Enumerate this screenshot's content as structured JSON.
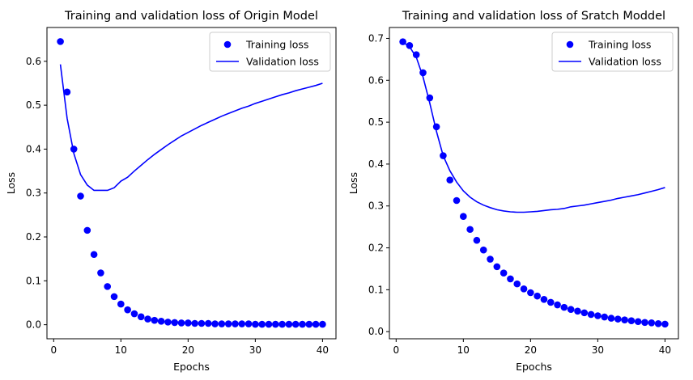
{
  "colors": {
    "series": "#0000ff",
    "axis": "#000000",
    "legend_border": "#cccccc"
  },
  "chart_data": [
    {
      "type": "line",
      "title": "Training and validation loss of Origin Model",
      "xlabel": "Epochs",
      "ylabel": "Loss",
      "xlim": [
        -1,
        42
      ],
      "ylim": [
        -0.032,
        0.677
      ],
      "xticks": [
        0,
        10,
        20,
        30,
        40
      ],
      "yticks": [
        0.0,
        0.1,
        0.2,
        0.3,
        0.4,
        0.5,
        0.6
      ],
      "ytick_labels": [
        "0.0",
        "0.1",
        "0.2",
        "0.3",
        "0.4",
        "0.5",
        "0.6"
      ],
      "grid": false,
      "legend_position": "top-right",
      "x": [
        1,
        2,
        3,
        4,
        5,
        6,
        7,
        8,
        9,
        10,
        11,
        12,
        13,
        14,
        15,
        16,
        17,
        18,
        19,
        20,
        21,
        22,
        23,
        24,
        25,
        26,
        27,
        28,
        29,
        30,
        31,
        32,
        33,
        34,
        35,
        36,
        37,
        38,
        39,
        40
      ],
      "series": [
        {
          "name": "Training loss",
          "style": "markers",
          "values": [
            0.645,
            0.53,
            0.4,
            0.293,
            0.215,
            0.16,
            0.118,
            0.087,
            0.064,
            0.047,
            0.034,
            0.025,
            0.018,
            0.013,
            0.01,
            0.008,
            0.006,
            0.005,
            0.004,
            0.004,
            0.003,
            0.003,
            0.003,
            0.002,
            0.002,
            0.002,
            0.002,
            0.002,
            0.002,
            0.001,
            0.001,
            0.001,
            0.001,
            0.001,
            0.001,
            0.001,
            0.001,
            0.001,
            0.001,
            0.001
          ]
        },
        {
          "name": "Validation loss",
          "style": "line",
          "values": [
            0.593,
            0.47,
            0.39,
            0.342,
            0.318,
            0.306,
            0.306,
            0.306,
            0.312,
            0.327,
            0.336,
            0.35,
            0.363,
            0.376,
            0.388,
            0.399,
            0.41,
            0.42,
            0.43,
            0.438,
            0.446,
            0.454,
            0.461,
            0.468,
            0.475,
            0.481,
            0.487,
            0.493,
            0.498,
            0.504,
            0.509,
            0.514,
            0.519,
            0.524,
            0.528,
            0.533,
            0.537,
            0.541,
            0.545,
            0.55
          ]
        }
      ]
    },
    {
      "type": "line",
      "title": "Training and validation loss of Sratch Moddel",
      "xlabel": "Epochs",
      "ylabel": "Loss",
      "xlim": [
        -1,
        42
      ],
      "ylim": [
        -0.017,
        0.726
      ],
      "xticks": [
        0,
        10,
        20,
        30,
        40
      ],
      "yticks": [
        0.0,
        0.1,
        0.2,
        0.3,
        0.4,
        0.5,
        0.6,
        0.7
      ],
      "ytick_labels": [
        "0.0",
        "0.1",
        "0.2",
        "0.3",
        "0.4",
        "0.5",
        "0.6",
        "0.7"
      ],
      "grid": false,
      "legend_position": "top-right",
      "x": [
        1,
        2,
        3,
        4,
        5,
        6,
        7,
        8,
        9,
        10,
        11,
        12,
        13,
        14,
        15,
        16,
        17,
        18,
        19,
        20,
        21,
        22,
        23,
        24,
        25,
        26,
        27,
        28,
        29,
        30,
        31,
        32,
        33,
        34,
        35,
        36,
        37,
        38,
        39,
        40
      ],
      "series": [
        {
          "name": "Training loss",
          "style": "markers",
          "values": [
            0.692,
            0.683,
            0.661,
            0.618,
            0.558,
            0.489,
            0.42,
            0.362,
            0.313,
            0.275,
            0.244,
            0.218,
            0.195,
            0.173,
            0.155,
            0.14,
            0.126,
            0.114,
            0.102,
            0.093,
            0.085,
            0.077,
            0.07,
            0.064,
            0.058,
            0.053,
            0.049,
            0.045,
            0.041,
            0.038,
            0.035,
            0.032,
            0.03,
            0.028,
            0.026,
            0.024,
            0.022,
            0.021,
            0.019,
            0.018
          ]
        },
        {
          "name": "Validation loss",
          "style": "line",
          "values": [
            0.691,
            0.68,
            0.655,
            0.608,
            0.546,
            0.478,
            0.42,
            0.384,
            0.357,
            0.336,
            0.321,
            0.31,
            0.302,
            0.296,
            0.291,
            0.288,
            0.286,
            0.285,
            0.285,
            0.286,
            0.287,
            0.289,
            0.291,
            0.292,
            0.294,
            0.298,
            0.3,
            0.302,
            0.305,
            0.308,
            0.311,
            0.314,
            0.318,
            0.321,
            0.324,
            0.327,
            0.331,
            0.335,
            0.339,
            0.344
          ]
        }
      ]
    }
  ]
}
